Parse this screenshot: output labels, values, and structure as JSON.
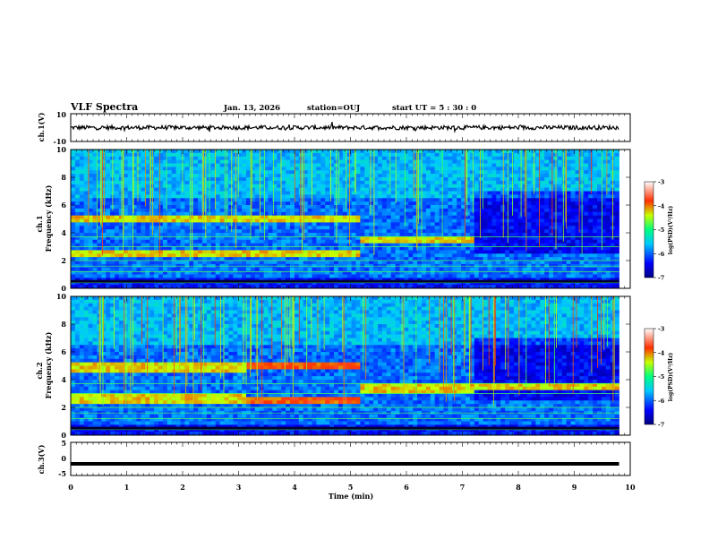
{
  "header": {
    "title": "VLF Spectra",
    "date": "Jan. 13, 2026",
    "station": "station=OUJ",
    "start_ut": "start  UT =  5 : 30 : 0"
  },
  "chart_data": [
    {
      "type": "line",
      "name": "ch1-waveform",
      "ylabel": "ch.1(V)",
      "ylim": [
        -10,
        10
      ],
      "yticks": [
        "10",
        "-10"
      ],
      "baseline_v": 0,
      "noise_v": 1.5
    },
    {
      "type": "heatmap",
      "name": "ch1-spectrogram",
      "ylabel": "ch.1",
      "ylabel2": "Frequency (kHz)",
      "ylim": [
        0,
        10
      ],
      "yticks": [
        "0",
        "2",
        "4",
        "6",
        "8",
        "10"
      ],
      "colorbar": {
        "label": "log(PSD)(V²/Hz)",
        "range": [
          -7,
          -3
        ],
        "ticks": [
          "-3",
          "-4",
          "-5",
          "-6",
          "-7"
        ]
      },
      "segments": [
        {
          "t0": 0.0,
          "t1": 3.1,
          "bands": [
            [
              4.9,
              5.1
            ],
            [
              2.5,
              2.7
            ]
          ]
        },
        {
          "t0": 3.1,
          "t1": 5.15,
          "bands": [
            [
              4.9,
              5.2
            ],
            [
              2.4,
              2.7
            ]
          ]
        },
        {
          "t0": 5.15,
          "t1": 7.25,
          "bands": [
            [
              3.3,
              3.5
            ]
          ]
        },
        {
          "t0": 7.25,
          "t1": 9.8,
          "bands": []
        }
      ]
    },
    {
      "type": "heatmap",
      "name": "ch2-spectrogram",
      "ylabel": "ch.2",
      "ylabel2": "Frequency (kHz)",
      "ylim": [
        0,
        10
      ],
      "yticks": [
        "0",
        "2",
        "4",
        "6",
        "8",
        "10"
      ],
      "colorbar": {
        "label": "log(PSD)(V²/Hz)",
        "range": [
          -7,
          -3
        ],
        "ticks": [
          "-3",
          "-4",
          "-5",
          "-6",
          "-7"
        ]
      },
      "segments": [
        {
          "t0": 0.0,
          "t1": 3.1,
          "bands": [
            [
              4.6,
              5.0
            ],
            [
              2.4,
              2.8
            ]
          ]
        },
        {
          "t0": 3.1,
          "t1": 5.15,
          "bands": [
            [
              4.8,
              5.2
            ],
            [
              2.3,
              2.6
            ]
          ]
        },
        {
          "t0": 5.15,
          "t1": 7.25,
          "bands": [
            [
              3.2,
              3.6
            ]
          ]
        },
        {
          "t0": 7.25,
          "t1": 9.8,
          "bands": [
            [
              3.3,
              3.5
            ]
          ]
        }
      ]
    },
    {
      "type": "line",
      "name": "ch3-waveform",
      "ylabel": "ch.3(V)",
      "ylim": [
        -5,
        5
      ],
      "yticks": [
        "5",
        "0",
        "-5"
      ],
      "level_v": -1.5
    }
  ],
  "xaxis": {
    "label": "Time  (min)",
    "range": [
      0,
      10
    ],
    "data_end": 9.8,
    "ticks": [
      "0",
      "1",
      "2",
      "3",
      "4",
      "5",
      "6",
      "7",
      "8",
      "9",
      "10"
    ]
  }
}
